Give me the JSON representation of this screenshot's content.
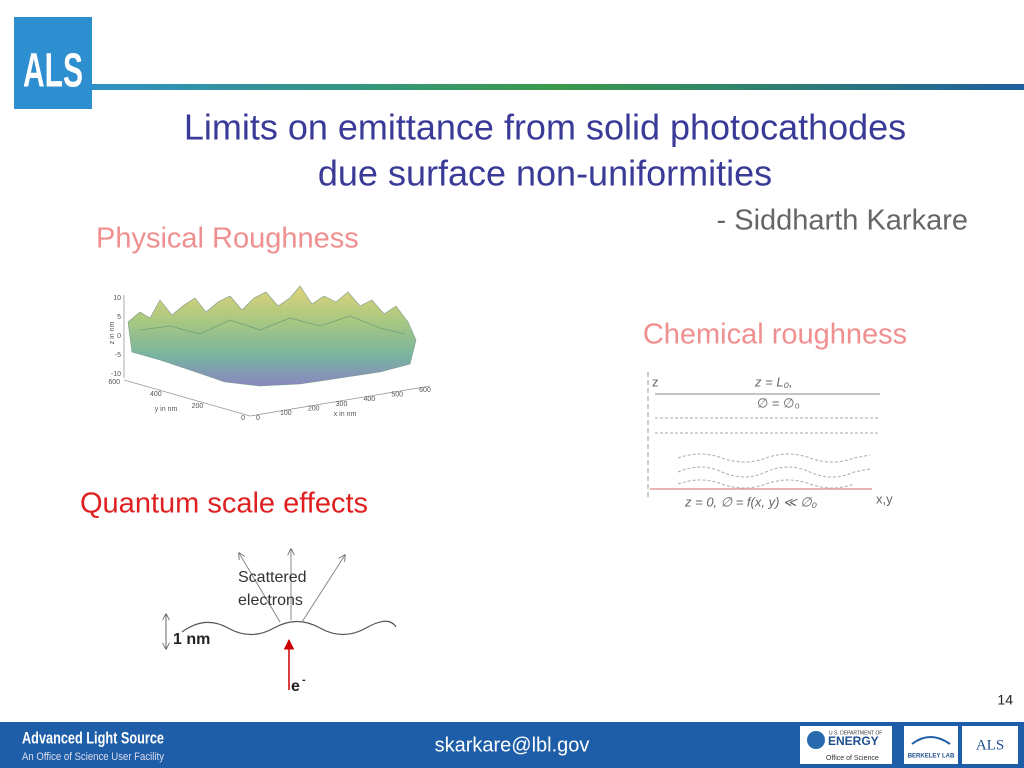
{
  "header": {
    "logo": "ALS",
    "title": [
      "Limits on emittance from solid photocathodes",
      "due surface non-uniformities"
    ],
    "author": "- Siddharth Karkare"
  },
  "physical": {
    "label": "Physical Roughness",
    "plot": {
      "z_label": "z in nm",
      "z_ticks": [
        10,
        5,
        0,
        -5,
        -10
      ],
      "y_label": "y in nm",
      "y_ticks": [
        600,
        400,
        200,
        0
      ],
      "x_label": "x in nm",
      "x_ticks": [
        0,
        100,
        200,
        300,
        400,
        500,
        600
      ]
    }
  },
  "chemical": {
    "label": "Chemical roughness",
    "z_axis": "z",
    "top_condition": [
      "z = L₀,",
      "∅ = ∅₀"
    ],
    "bottom_condition": "z = 0, ∅ = f(x, y) ≪ ∅₀",
    "xy_axis": "x,y"
  },
  "quantum": {
    "label": "Quantum scale effects",
    "scattered": [
      "Scattered",
      "electrons"
    ],
    "height": "1 nm",
    "electron": "e",
    "electron_sup": "-"
  },
  "page_number": "14",
  "footer": {
    "org": "Advanced Light Source",
    "tagline": "An Office of Science User Facility",
    "email": "skarkare@lbl.gov",
    "doe_top": "U.S. DEPARTMENT OF",
    "doe": "ENERGY",
    "doe_office": "Office of Science",
    "berkeley": "BERKELEY LAB",
    "als": "ALS"
  }
}
